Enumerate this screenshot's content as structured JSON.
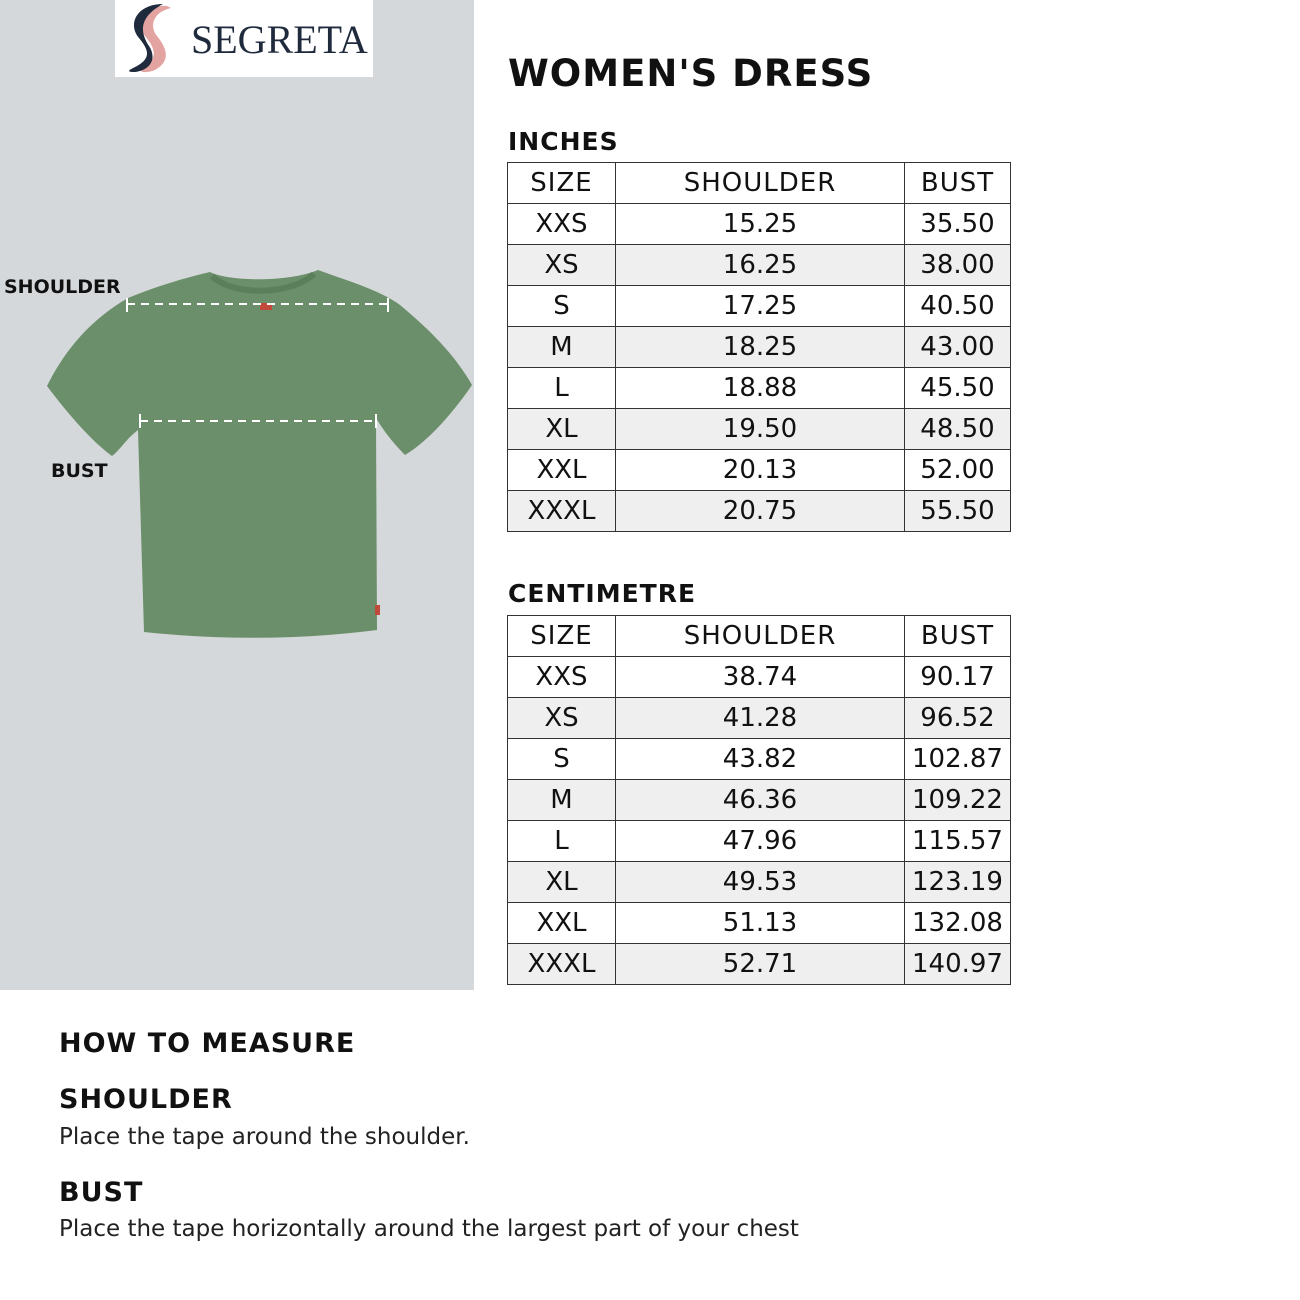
{
  "brand": {
    "logo_text": "SEGRETA",
    "colors": {
      "navy": "#1f2a3d",
      "pink": "#e3a3a0"
    }
  },
  "illustration": {
    "shoulder_label": "SHOULDER",
    "bust_label": "BUST",
    "shirt_color": "#6b8f6a"
  },
  "title": "WOMEN'S DRESS",
  "inches": {
    "heading": "INCHES",
    "columns": [
      "SIZE",
      "SHOULDER",
      "BUST"
    ],
    "rows": [
      [
        "XXS",
        "15.25",
        "35.50"
      ],
      [
        "XS",
        "16.25",
        "38.00"
      ],
      [
        "S",
        "17.25",
        "40.50"
      ],
      [
        "M",
        "18.25",
        "43.00"
      ],
      [
        "L",
        "18.88",
        "45.50"
      ],
      [
        "XL",
        "19.50",
        "48.50"
      ],
      [
        "XXL",
        "20.13",
        "52.00"
      ],
      [
        "XXXL",
        "20.75",
        "55.50"
      ]
    ]
  },
  "centimetre": {
    "heading": "CENTIMETRE",
    "columns": [
      "SIZE",
      "SHOULDER",
      "BUST"
    ],
    "rows": [
      [
        "XXS",
        "38.74",
        "90.17"
      ],
      [
        "XS",
        "41.28",
        "96.52"
      ],
      [
        "S",
        "43.82",
        "102.87"
      ],
      [
        "M",
        "46.36",
        "109.22"
      ],
      [
        "L",
        "47.96",
        "115.57"
      ],
      [
        "XL",
        "49.53",
        "123.19"
      ],
      [
        "XXL",
        "51.13",
        "132.08"
      ],
      [
        "XXXL",
        "52.71",
        "140.97"
      ]
    ]
  },
  "how_to_measure": {
    "heading": "HOW TO MEASURE",
    "shoulder": {
      "heading": "SHOULDER",
      "text": "Place the tape around the shoulder."
    },
    "bust": {
      "heading": "BUST",
      "text": "Place the tape horizontally around the largest part of your chest"
    }
  }
}
